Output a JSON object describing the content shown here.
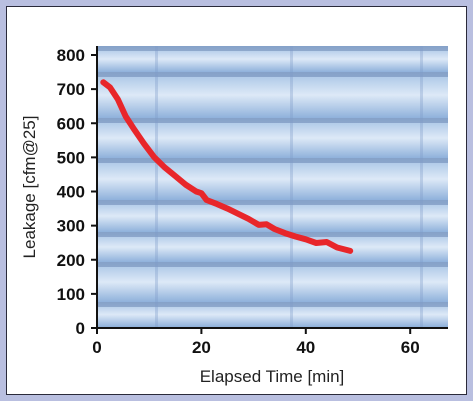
{
  "chart_data": {
    "type": "line",
    "xlabel": "Elapsed Time [min]",
    "ylabel": "Leakage [cfm@25]",
    "xlim": [
      0,
      70
    ],
    "ylim": [
      0,
      800
    ],
    "x_ticks": [
      0,
      20,
      40,
      60
    ],
    "y_ticks": [
      0,
      100,
      200,
      300,
      400,
      500,
      600,
      700,
      800
    ],
    "x_tick_labels": [
      "0",
      "20",
      "40",
      "60"
    ],
    "y_tick_labels": [
      "0",
      "100",
      "200",
      "300",
      "400",
      "500",
      "600",
      "700",
      "800"
    ],
    "grid": false,
    "background": "photo of corrugated metal duct",
    "series": [
      {
        "color": "#e8262a",
        "x": [
          1.2,
          2.5,
          4,
          5.5,
          7,
          9,
          11,
          13,
          15,
          17,
          19,
          20,
          21,
          23,
          25,
          27,
          29,
          31,
          32.5,
          34,
          36,
          38,
          40,
          42,
          44,
          46,
          48.5
        ],
        "y": [
          720,
          705,
          670,
          620,
          585,
          540,
          500,
          470,
          445,
          420,
          400,
          395,
          375,
          363,
          350,
          335,
          320,
          302,
          304,
          290,
          278,
          268,
          260,
          249,
          252,
          236,
          226
        ]
      }
    ]
  }
}
